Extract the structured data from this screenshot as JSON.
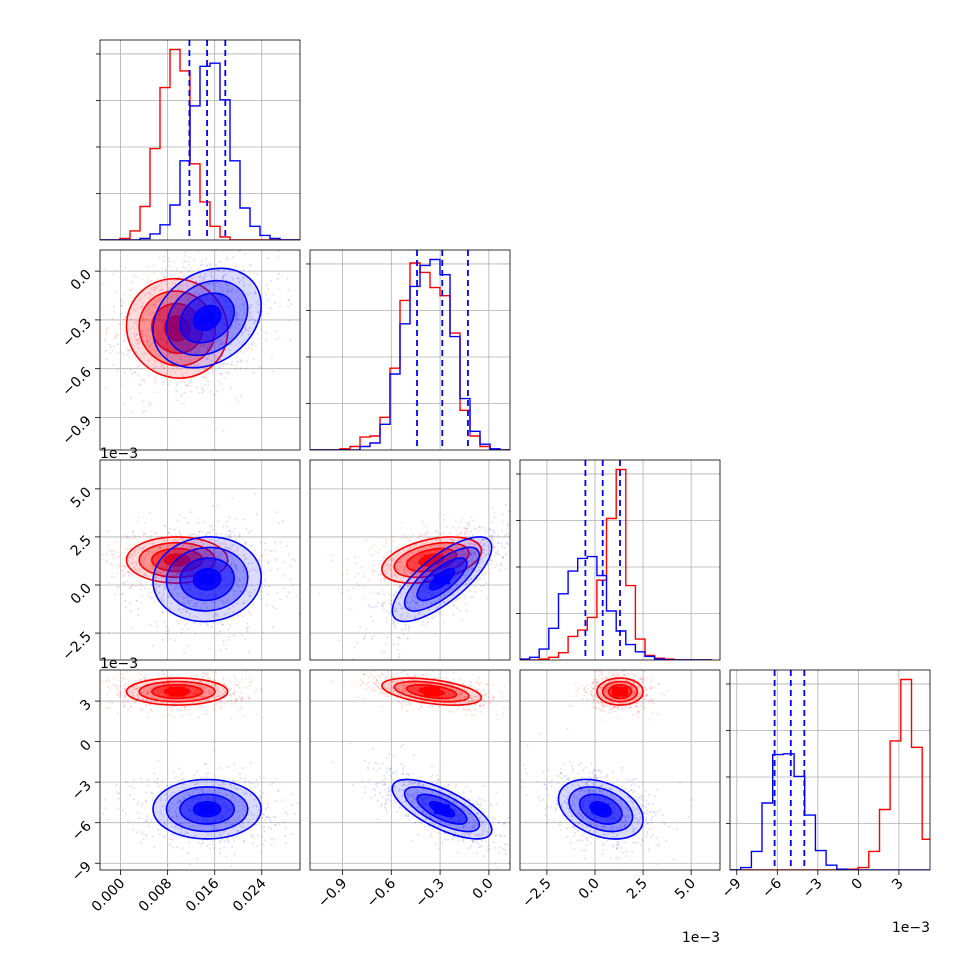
{
  "chart_data": {
    "type": "corner",
    "parameters": 4,
    "series": [
      {
        "name": "",
        "color": "#0000ff"
      },
      {
        "name": "",
        "color": "#ff0000"
      }
    ],
    "tick_labels": {
      "p0": [
        "0.000",
        "0.008",
        "0.016",
        "0.024"
      ],
      "p1": [
        "−0.9",
        "−0.6",
        "−0.3",
        "0.0"
      ],
      "p2": [
        "−2.5",
        "0.0",
        "2.5",
        "5.0"
      ],
      "p3": [
        "−9",
        "−6",
        "−3",
        "0",
        "3"
      ]
    },
    "offset_text": "1e−3",
    "axis_ranges": {
      "p0": [
        -0.0035,
        0.0305
      ],
      "p1": [
        -1.1,
        0.13
      ],
      "p2": [
        -0.0039,
        0.0065
      ],
      "p3": [
        -0.0095,
        0.0053
      ]
    },
    "marginals": {
      "p0": {
        "bins": [
          -0.0035,
          -0.0018,
          -0.0001,
          0.0016,
          0.0033,
          0.005,
          0.0067,
          0.0084,
          0.0101,
          0.0118,
          0.0135,
          0.0152,
          0.0169,
          0.0186,
          0.0203,
          0.022,
          0.0237,
          0.0254,
          0.0271,
          0.0288,
          0.0305
        ],
        "blue": [
          0,
          0,
          0,
          0,
          1,
          4,
          10,
          23,
          52,
          88,
          114,
          116,
          92,
          52,
          21,
          9,
          3,
          1,
          0,
          0
        ],
        "red": [
          0,
          0,
          1,
          6,
          22,
          60,
          100,
          125,
          111,
          50,
          25,
          9,
          2,
          0,
          0,
          0,
          0,
          0,
          0,
          0
        ],
        "quantile_lines": [
          0.0117,
          0.0147,
          0.0178
        ]
      },
      "p1": {
        "bins": [
          -1.1,
          -1.0385,
          -0.977,
          -0.9155,
          -0.854,
          -0.7925,
          -0.731,
          -0.6695,
          -0.608,
          -0.5465,
          -0.485,
          -0.4235,
          -0.362,
          -0.3005,
          -0.239,
          -0.1775,
          -0.116,
          -0.0545,
          0.007,
          0.0685,
          0.13
        ],
        "blue": [
          0,
          0,
          0,
          0,
          0,
          3,
          6,
          22,
          65,
          108,
          140,
          158,
          163,
          150,
          97,
          44,
          16,
          5,
          1,
          0
        ],
        "red": [
          0,
          0,
          0,
          1,
          3,
          11,
          12,
          28,
          70,
          128,
          160,
          152,
          139,
          132,
          100,
          34,
          12,
          3,
          0,
          0
        ],
        "quantile_lines": [
          -0.4418,
          -0.2866,
          -0.1286
        ]
      },
      "p2": {
        "bins": [
          -0.0039,
          -0.0034,
          -0.0029,
          -0.0024,
          -0.0019,
          -0.0014,
          -0.0009,
          -0.0004,
          0.0001,
          0.0006,
          0.0011,
          0.0016,
          0.0021,
          0.0026,
          0.0031,
          0.0036,
          0.0041,
          0.0046,
          0.0051,
          0.0056,
          0.0061
        ],
        "blue": [
          1,
          3,
          12,
          35,
          73,
          98,
          112,
          114,
          93,
          54,
          32,
          17,
          9,
          4,
          1,
          0,
          0,
          0,
          0,
          0
        ],
        "red": [
          0,
          0,
          1,
          3,
          8,
          26,
          33,
          47,
          88,
          156,
          210,
          82,
          23,
          5,
          2,
          1,
          0,
          0,
          0,
          0
        ],
        "quantile_lines": [
          -0.0005,
          0.0004,
          0.0013
        ]
      },
      "p3": {
        "bins": [
          -0.0095,
          -0.00871,
          -0.00792,
          -0.00713,
          -0.00634,
          -0.00555,
          -0.00476,
          -0.00397,
          -0.00318,
          -0.00239,
          -0.0016,
          -0.00081,
          -2e-05,
          0.00077,
          0.00156,
          0.00235,
          0.00314,
          0.00393,
          0.00472,
          0.0053
        ],
        "blue": [
          0,
          3,
          23,
          83,
          143,
          144,
          116,
          68,
          24,
          6,
          1,
          0,
          0,
          0,
          0,
          0,
          0,
          0,
          0
        ],
        "red": [
          0,
          0,
          0,
          0,
          0,
          0,
          0,
          0,
          0,
          0,
          0,
          1,
          3,
          23,
          75,
          160,
          236,
          152,
          38
        ],
        "quantile_lines": [
          -0.0062,
          -0.005,
          -0.004
        ]
      }
    },
    "pairs": {
      "p1_vs_p0": {
        "blue": {
          "mean": [
            0.0147,
            -0.288
          ],
          "sd": [
            0.0046,
            0.153
          ],
          "corr": 0.25
        },
        "red": {
          "mean": [
            0.0096,
            -0.352
          ],
          "sd": [
            0.0043,
            0.153
          ],
          "corr": -0.05
        }
      },
      "p2_vs_p0": {
        "blue": {
          "mean": [
            0.0147,
            0.0003
          ],
          "sd": [
            0.0046,
            0.0011
          ],
          "corr": 0.05
        },
        "red": {
          "mean": [
            0.0096,
            0.0013
          ],
          "sd": [
            0.0043,
            0.0006
          ],
          "corr": 0.0
        }
      },
      "p2_vs_p1": {
        "blue": {
          "mean": [
            -0.288,
            0.0003
          ],
          "sd": [
            0.153,
            0.0011
          ],
          "corr": 0.75
        },
        "red": {
          "mean": [
            -0.352,
            0.0013
          ],
          "sd": [
            0.153,
            0.0006
          ],
          "corr": 0.4
        }
      },
      "p3_vs_p0": {
        "blue": {
          "mean": [
            0.0147,
            -0.005
          ],
          "sd": [
            0.0046,
            0.0011
          ],
          "corr": 0.0
        },
        "red": {
          "mean": [
            0.0096,
            0.0037
          ],
          "sd": [
            0.0043,
            0.0005
          ],
          "corr": 0.0
        }
      },
      "p3_vs_p1": {
        "blue": {
          "mean": [
            -0.288,
            -0.005
          ],
          "sd": [
            0.153,
            0.0011
          ],
          "corr": -0.7
        },
        "red": {
          "mean": [
            -0.352,
            0.0037
          ],
          "sd": [
            0.153,
            0.0005
          ],
          "corr": -0.45
        }
      },
      "p3_vs_p2": {
        "blue": {
          "mean": [
            0.0003,
            -0.005
          ],
          "sd": [
            0.0011,
            0.0011
          ],
          "corr": -0.35
        },
        "red": {
          "mean": [
            0.0013,
            0.0037
          ],
          "sd": [
            0.0006,
            0.0005
          ],
          "corr": 0.0
        }
      }
    },
    "grid": true
  }
}
